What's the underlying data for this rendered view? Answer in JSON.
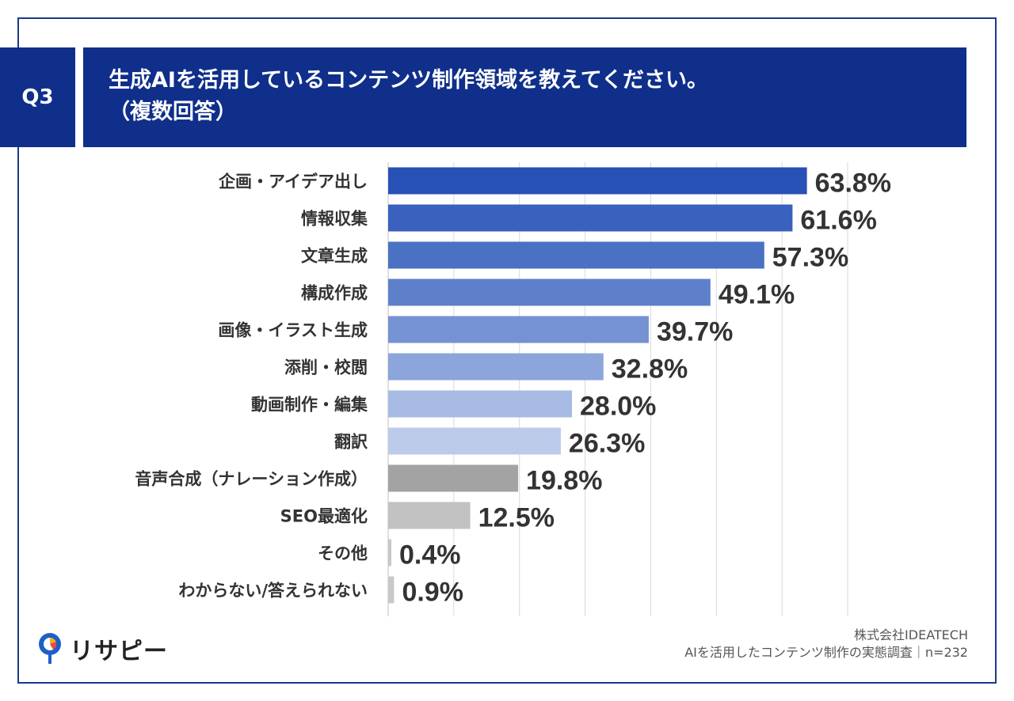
{
  "header": {
    "badge": "Q3",
    "title_line1": "生成AIを活用しているコンテンツ制作領域を教えてください。",
    "title_line2": "（複数回答）"
  },
  "footer": {
    "company": "株式会社IDEATECH",
    "survey": "AIを活用したコンテンツ制作の実態調査｜n=232",
    "logo_text": "リサピー"
  },
  "colors": {
    "header_bg": "#0f2f8a",
    "bars": [
      "#2851b5",
      "#3961bd",
      "#4b71c4",
      "#5e80ca",
      "#7592d2",
      "#8ca5da",
      "#a6bae3",
      "#bccbea",
      "#a3a3a3",
      "#c2c2c2",
      "#c8c8c8",
      "#c8c8c8"
    ]
  },
  "chart_data": {
    "type": "bar",
    "orientation": "horizontal",
    "categories": [
      "企画・アイデア出し",
      "情報収集",
      "文章生成",
      "構成作成",
      "画像・イラスト生成",
      "添削・校閲",
      "動画制作・編集",
      "翻訳",
      "音声合成（ナレーション作成）",
      "SEO最適化",
      "その他",
      "わからない/答えられない"
    ],
    "values": [
      63.8,
      61.6,
      57.3,
      49.1,
      39.7,
      32.8,
      28.0,
      26.3,
      19.8,
      12.5,
      0.4,
      0.9
    ],
    "value_labels": [
      "63.8%",
      "61.6%",
      "57.3%",
      "49.1%",
      "39.7%",
      "32.8%",
      "28.0%",
      "26.3%",
      "19.8%",
      "12.5%",
      "0.4%",
      "0.9%"
    ],
    "xlim": [
      0,
      70
    ],
    "grid": true
  }
}
